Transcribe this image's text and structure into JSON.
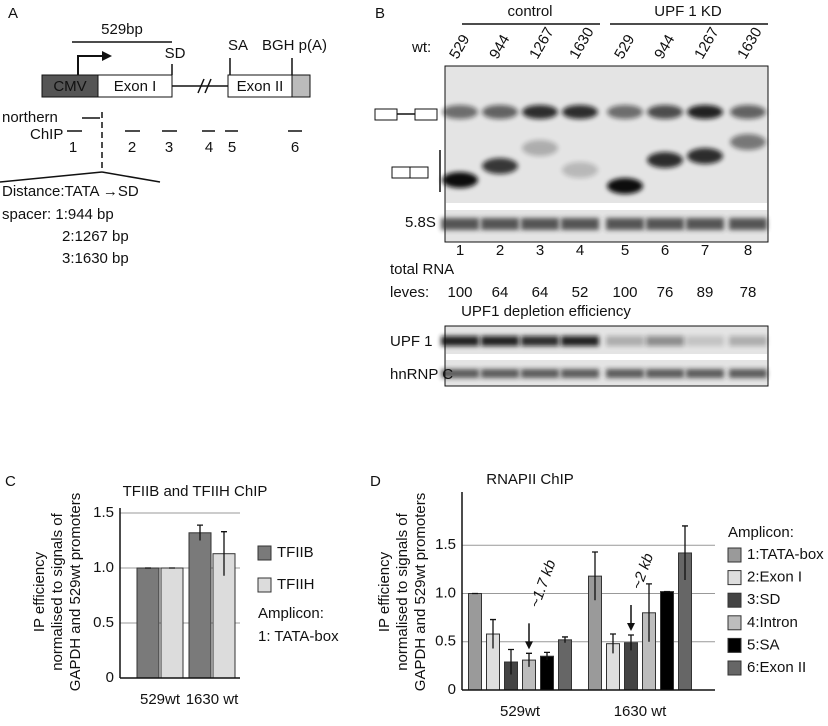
{
  "panel_a": {
    "label": "A",
    "length": "529bp",
    "boxes": [
      "CMV",
      "Exon I",
      "Exon II"
    ],
    "sites": [
      "SD",
      "SA",
      "BGH p(A)"
    ],
    "northern": "northern",
    "chip": "ChIP",
    "amplicons": [
      "1",
      "2",
      "3",
      "4",
      "5",
      "6"
    ],
    "distance": "Distance:TATA →SD",
    "spacer": [
      "spacer: 1:944 bp",
      "2:1267 bp",
      "3:1630 bp"
    ]
  },
  "panel_b": {
    "label": "B",
    "groups": [
      "control",
      "UPF 1 KD"
    ],
    "wt": "wt:",
    "lanes": [
      "529",
      "944",
      "1267",
      "1630",
      "529",
      "944",
      "1267",
      "1630"
    ],
    "marker": "5.8S",
    "lane_numbers": [
      1,
      2,
      3,
      4,
      5,
      6,
      7,
      8
    ],
    "total_rna": [
      "total RNA",
      "leves:"
    ],
    "rna_levels": [
      100,
      64,
      64,
      52,
      100,
      76,
      89,
      78
    ],
    "depletion": "UPF1 depletion efficiency",
    "blots": [
      "UPF 1",
      "hnRNP C"
    ]
  },
  "chart_data": [
    {
      "type": "bar",
      "panel": "C",
      "title": "TFIIB and TFIIH ChIP",
      "ylabel": [
        "IP efficiency",
        "normalised to signals of",
        "GAPDH and 529wt promoters"
      ],
      "categories": [
        "529wt",
        "1630 wt"
      ],
      "series": [
        {
          "name": "TFIIB",
          "color": "#7a7a7a",
          "values": [
            1.0,
            1.32
          ],
          "errors": [
            0,
            0.07
          ]
        },
        {
          "name": "TFIIH",
          "color": "#dcdcdc",
          "values": [
            1.0,
            1.13
          ],
          "errors": [
            0,
            0.2
          ]
        }
      ],
      "legend_title": "Amplicon:",
      "legend_note": "1: TATA-box",
      "ylim": [
        0,
        1.5
      ],
      "yticks": [
        0,
        0.5,
        {
          "value": 1,
          "label": "1.0"
        },
        1.5
      ],
      "grid": true
    },
    {
      "type": "bar",
      "panel": "D",
      "title": "RNAPII ChIP",
      "ylabel": [
        "IP efficiency",
        "normalised to signals of",
        "GAPDH and 529wt promoters"
      ],
      "categories": [
        "529wt",
        "1630 wt"
      ],
      "series": [
        {
          "name": "1:TATA-box",
          "color": "#9a9a9a",
          "values": [
            1.0,
            1.18
          ],
          "errors": [
            0,
            0.25
          ]
        },
        {
          "name": "2:Exon I",
          "color": "#dedede",
          "values": [
            0.58,
            0.48
          ],
          "errors": [
            0.15,
            0.1
          ]
        },
        {
          "name": "3:SD",
          "color": "#444444",
          "values": [
            0.29,
            0.49
          ],
          "errors": [
            0.13,
            0.08
          ]
        },
        {
          "name": "4:Intron",
          "color": "#bdbdbd",
          "values": [
            0.31,
            0.8
          ],
          "errors": [
            0.07,
            0.3
          ]
        },
        {
          "name": "5:SA",
          "color": "#000000",
          "values": [
            0.35,
            1.02
          ],
          "errors": [
            0.04,
            0
          ]
        },
        {
          "name": "6:Exon II",
          "color": "#666666",
          "values": [
            0.52,
            1.42
          ],
          "errors": [
            0.03,
            0.28
          ]
        }
      ],
      "legend_title": "Amplicon:",
      "annotations": [
        "~1.7 kb",
        "~2 kb"
      ],
      "ylim": [
        0,
        2
      ],
      "yticks": [
        0,
        0.5,
        {
          "value": 1,
          "label": "1.0"
        },
        1.5
      ],
      "grid": true
    }
  ]
}
